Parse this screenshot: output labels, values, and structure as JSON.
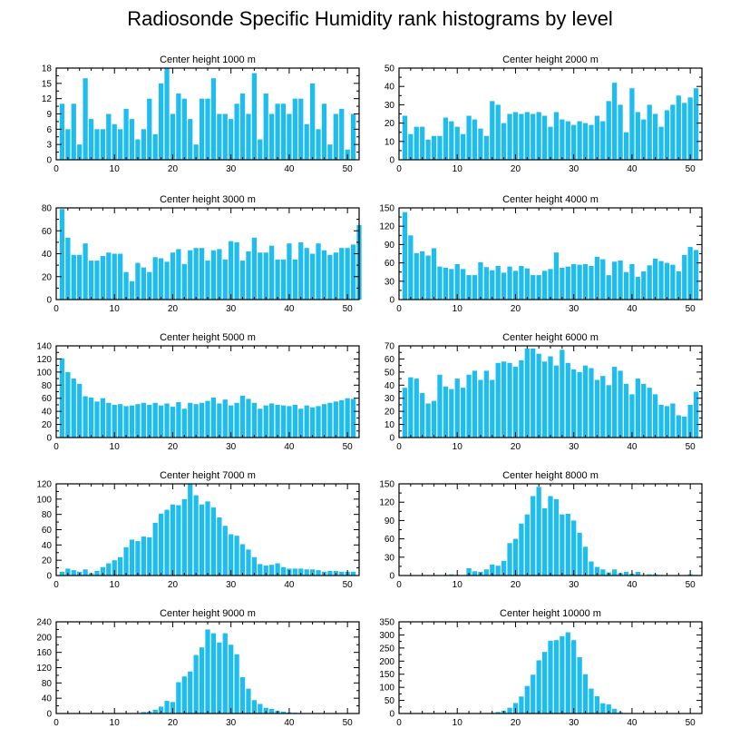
{
  "title": "Radiosonde Specific Humidity rank histograms by level",
  "bar_color": "#1EBDF0",
  "chart_data": [
    {
      "type": "bar",
      "title": "Center height 1000 m",
      "xlim": [
        0,
        52
      ],
      "ylim": [
        0,
        18
      ],
      "xticks": [
        0,
        10,
        20,
        30,
        40,
        50
      ],
      "yticks": [
        0,
        3,
        6,
        9,
        12,
        15,
        18
      ],
      "x": [
        1,
        2,
        3,
        4,
        5,
        6,
        7,
        8,
        9,
        10,
        11,
        12,
        13,
        14,
        15,
        16,
        17,
        18,
        19,
        20,
        21,
        22,
        23,
        24,
        25,
        26,
        27,
        28,
        29,
        30,
        31,
        32,
        33,
        34,
        35,
        36,
        37,
        38,
        39,
        40,
        41,
        42,
        43,
        44,
        45,
        46,
        47,
        48,
        49,
        50,
        51
      ],
      "values": [
        11,
        6,
        11,
        3,
        16,
        8,
        6,
        6,
        9,
        7,
        6,
        10,
        8,
        4,
        6,
        12,
        5,
        15,
        18,
        9,
        13,
        12,
        8,
        3,
        12,
        12,
        16,
        9,
        9,
        8,
        11,
        13,
        9,
        17,
        4,
        13,
        9,
        11,
        11,
        9,
        12,
        12,
        7,
        15,
        6,
        11,
        3,
        9,
        10,
        2,
        9
      ]
    },
    {
      "type": "bar",
      "title": "Center height 2000 m",
      "xlim": [
        0,
        52
      ],
      "ylim": [
        0,
        50
      ],
      "xticks": [
        0,
        10,
        20,
        30,
        40,
        50
      ],
      "yticks": [
        0,
        10,
        20,
        30,
        40,
        50
      ],
      "x": [
        1,
        2,
        3,
        4,
        5,
        6,
        7,
        8,
        9,
        10,
        11,
        12,
        13,
        14,
        15,
        16,
        17,
        18,
        19,
        20,
        21,
        22,
        23,
        24,
        25,
        26,
        27,
        28,
        29,
        30,
        31,
        32,
        33,
        34,
        35,
        36,
        37,
        38,
        39,
        40,
        41,
        42,
        43,
        44,
        45,
        46,
        47,
        48,
        49,
        50,
        51
      ],
      "values": [
        24,
        14,
        18,
        18,
        11,
        13,
        13,
        23,
        21,
        18,
        14,
        24,
        22,
        17,
        13,
        32,
        30,
        20,
        25,
        26,
        25,
        26,
        25,
        26,
        24,
        18,
        26,
        22,
        21,
        19,
        21,
        20,
        19,
        24,
        21,
        32,
        42,
        30,
        15,
        39,
        26,
        22,
        30,
        25,
        18,
        27,
        30,
        35,
        31,
        34,
        39
      ]
    },
    {
      "type": "bar",
      "title": "Center height 3000 m",
      "xlim": [
        0,
        52
      ],
      "ylim": [
        0,
        80
      ],
      "xticks": [
        0,
        10,
        20,
        30,
        40,
        50
      ],
      "yticks": [
        0,
        20,
        40,
        60,
        80
      ],
      "x": [
        1,
        2,
        3,
        4,
        5,
        6,
        7,
        8,
        9,
        10,
        11,
        12,
        13,
        14,
        15,
        16,
        17,
        18,
        19,
        20,
        21,
        22,
        23,
        24,
        25,
        26,
        27,
        28,
        29,
        30,
        31,
        32,
        33,
        34,
        35,
        36,
        37,
        38,
        39,
        40,
        41,
        42,
        43,
        44,
        45,
        46,
        47,
        48,
        49,
        50,
        51,
        52
      ],
      "values": [
        79,
        54,
        39,
        39,
        49,
        34,
        34,
        38,
        41,
        40,
        40,
        24,
        16,
        32,
        28,
        24,
        37,
        36,
        33,
        41,
        44,
        31,
        43,
        45,
        45,
        34,
        43,
        44,
        35,
        51,
        50,
        34,
        42,
        54,
        41,
        41,
        47,
        35,
        35,
        49,
        35,
        50,
        45,
        40,
        49,
        43,
        39,
        41,
        45,
        45,
        48,
        65
      ]
    },
    {
      "type": "bar",
      "title": "Center height 4000 m",
      "xlim": [
        0,
        52
      ],
      "ylim": [
        0,
        150
      ],
      "xticks": [
        0,
        10,
        20,
        30,
        40,
        50
      ],
      "yticks": [
        0,
        30,
        60,
        90,
        120,
        150
      ],
      "x": [
        1,
        2,
        3,
        4,
        5,
        6,
        7,
        8,
        9,
        10,
        11,
        12,
        13,
        14,
        15,
        16,
        17,
        18,
        19,
        20,
        21,
        22,
        23,
        24,
        25,
        26,
        27,
        28,
        29,
        30,
        31,
        32,
        33,
        34,
        35,
        36,
        37,
        38,
        39,
        40,
        41,
        42,
        43,
        44,
        45,
        46,
        47,
        48,
        49,
        50,
        51
      ],
      "values": [
        143,
        105,
        76,
        79,
        72,
        84,
        54,
        52,
        50,
        58,
        50,
        40,
        40,
        61,
        53,
        48,
        55,
        44,
        54,
        47,
        55,
        51,
        40,
        40,
        47,
        50,
        77,
        52,
        54,
        58,
        57,
        58,
        55,
        70,
        66,
        40,
        62,
        64,
        45,
        58,
        37,
        46,
        56,
        67,
        63,
        60,
        57,
        46,
        73,
        86,
        81
      ]
    },
    {
      "type": "bar",
      "title": "Center height 5000 m",
      "xlim": [
        0,
        52
      ],
      "ylim": [
        0,
        140
      ],
      "xticks": [
        0,
        10,
        20,
        30,
        40,
        50
      ],
      "yticks": [
        0,
        20,
        40,
        60,
        80,
        100,
        120,
        140
      ],
      "x": [
        1,
        2,
        3,
        4,
        5,
        6,
        7,
        8,
        9,
        10,
        11,
        12,
        13,
        14,
        15,
        16,
        17,
        18,
        19,
        20,
        21,
        22,
        23,
        24,
        25,
        26,
        27,
        28,
        29,
        30,
        31,
        32,
        33,
        34,
        35,
        36,
        37,
        38,
        39,
        40,
        41,
        42,
        43,
        44,
        45,
        46,
        47,
        48,
        49,
        50,
        51
      ],
      "values": [
        121,
        100,
        90,
        82,
        63,
        61,
        55,
        60,
        53,
        50,
        51,
        48,
        49,
        51,
        53,
        50,
        53,
        49,
        52,
        47,
        54,
        44,
        53,
        51,
        53,
        56,
        61,
        52,
        58,
        49,
        53,
        64,
        59,
        53,
        44,
        49,
        52,
        50,
        49,
        48,
        50,
        44,
        49,
        46,
        48,
        51,
        53,
        55,
        57,
        60,
        59
      ]
    },
    {
      "type": "bar",
      "title": "Center height 6000 m",
      "xlim": [
        0,
        52
      ],
      "ylim": [
        0,
        70
      ],
      "xticks": [
        0,
        10,
        20,
        30,
        40,
        50
      ],
      "yticks": [
        0,
        10,
        20,
        30,
        40,
        50,
        60,
        70
      ],
      "x": [
        1,
        2,
        3,
        4,
        5,
        6,
        7,
        8,
        9,
        10,
        11,
        12,
        13,
        14,
        15,
        16,
        17,
        18,
        19,
        20,
        21,
        22,
        23,
        24,
        25,
        26,
        27,
        28,
        29,
        30,
        31,
        32,
        33,
        34,
        35,
        36,
        37,
        38,
        39,
        40,
        41,
        42,
        43,
        44,
        45,
        46,
        47,
        48,
        49,
        50,
        51
      ],
      "values": [
        38,
        46,
        45,
        34,
        26,
        28,
        48,
        39,
        37,
        45,
        38,
        48,
        51,
        44,
        51,
        44,
        57,
        58,
        57,
        54,
        59,
        68,
        68,
        64,
        58,
        62,
        55,
        67,
        57,
        52,
        50,
        55,
        53,
        44,
        47,
        40,
        54,
        51,
        41,
        33,
        45,
        41,
        38,
        33,
        25,
        24,
        26,
        17,
        16,
        25,
        35
      ]
    },
    {
      "type": "bar",
      "title": "Center height 7000 m",
      "xlim": [
        0,
        52
      ],
      "ylim": [
        0,
        120
      ],
      "xticks": [
        0,
        10,
        20,
        30,
        40,
        50
      ],
      "yticks": [
        0,
        20,
        40,
        60,
        80,
        100,
        120
      ],
      "x": [
        1,
        2,
        3,
        4,
        5,
        6,
        7,
        8,
        9,
        10,
        11,
        12,
        13,
        14,
        15,
        16,
        17,
        18,
        19,
        20,
        21,
        22,
        23,
        24,
        25,
        26,
        27,
        28,
        29,
        30,
        31,
        32,
        33,
        34,
        35,
        36,
        37,
        38,
        39,
        40,
        41,
        42,
        43,
        44,
        45,
        46,
        47,
        48,
        49,
        50,
        51
      ],
      "values": [
        5,
        9,
        7,
        5,
        8,
        3,
        6,
        11,
        16,
        20,
        24,
        37,
        47,
        45,
        51,
        50,
        69,
        81,
        86,
        93,
        92,
        100,
        120,
        105,
        93,
        97,
        89,
        76,
        65,
        54,
        52,
        41,
        34,
        24,
        15,
        13,
        14,
        16,
        11,
        9,
        9,
        9,
        8,
        8,
        7,
        5,
        6,
        6,
        5,
        5,
        5
      ]
    },
    {
      "type": "bar",
      "title": "Center height 8000 m",
      "xlim": [
        0,
        52
      ],
      "ylim": [
        0,
        150
      ],
      "xticks": [
        0,
        10,
        20,
        30,
        40,
        50
      ],
      "yticks": [
        0,
        30,
        60,
        90,
        120,
        150
      ],
      "x": [
        1,
        2,
        3,
        4,
        5,
        6,
        7,
        8,
        9,
        10,
        11,
        12,
        13,
        14,
        15,
        16,
        17,
        18,
        19,
        20,
        21,
        22,
        23,
        24,
        25,
        26,
        27,
        28,
        29,
        30,
        31,
        32,
        33,
        34,
        35,
        36,
        37,
        38,
        39,
        40,
        41,
        42,
        43,
        44,
        45,
        46,
        47,
        48,
        49,
        50,
        51
      ],
      "values": [
        0,
        0,
        0,
        0,
        0,
        0,
        0,
        1,
        2,
        1,
        0,
        12,
        7,
        6,
        10,
        18,
        16,
        24,
        53,
        60,
        85,
        100,
        130,
        145,
        110,
        130,
        125,
        100,
        101,
        90,
        70,
        47,
        23,
        14,
        10,
        5,
        10,
        4,
        6,
        3,
        6,
        0,
        2,
        2,
        1,
        0,
        0,
        0,
        0,
        2,
        1
      ]
    },
    {
      "type": "bar",
      "title": "Center height 9000 m",
      "xlim": [
        0,
        52
      ],
      "ylim": [
        0,
        240
      ],
      "xticks": [
        0,
        10,
        20,
        30,
        40,
        50
      ],
      "yticks": [
        0,
        40,
        80,
        120,
        160,
        200,
        240
      ],
      "x": [
        1,
        2,
        3,
        4,
        5,
        6,
        7,
        8,
        9,
        10,
        11,
        12,
        13,
        14,
        15,
        16,
        17,
        18,
        19,
        20,
        21,
        22,
        23,
        24,
        25,
        26,
        27,
        28,
        29,
        30,
        31,
        32,
        33,
        34,
        35,
        36,
        37,
        38,
        39,
        40,
        41,
        42,
        43,
        44,
        45,
        46,
        47,
        48,
        49,
        50,
        51
      ],
      "values": [
        0,
        0,
        0,
        0,
        0,
        0,
        0,
        0,
        0,
        0,
        0,
        0,
        0,
        0,
        4,
        5,
        10,
        18,
        33,
        30,
        82,
        97,
        110,
        153,
        173,
        220,
        210,
        186,
        210,
        180,
        155,
        95,
        65,
        35,
        25,
        15,
        12,
        7,
        5,
        3,
        2,
        0,
        0,
        0,
        0,
        0,
        0,
        0,
        0,
        0,
        0
      ]
    },
    {
      "type": "bar",
      "title": "Center height 10000 m",
      "xlim": [
        0,
        52
      ],
      "ylim": [
        0,
        350
      ],
      "xticks": [
        0,
        10,
        20,
        30,
        40,
        50
      ],
      "yticks": [
        0,
        50,
        100,
        150,
        200,
        250,
        300,
        350
      ],
      "x": [
        1,
        2,
        3,
        4,
        5,
        6,
        7,
        8,
        9,
        10,
        11,
        12,
        13,
        14,
        15,
        16,
        17,
        18,
        19,
        20,
        21,
        22,
        23,
        24,
        25,
        26,
        27,
        28,
        29,
        30,
        31,
        32,
        33,
        34,
        35,
        36,
        37,
        38,
        39,
        40,
        41,
        42,
        43,
        44,
        45,
        46,
        47,
        48,
        49,
        50,
        51
      ],
      "values": [
        0,
        0,
        0,
        0,
        0,
        0,
        0,
        0,
        0,
        0,
        0,
        0,
        0,
        0,
        0,
        3,
        6,
        11,
        22,
        40,
        65,
        105,
        148,
        203,
        235,
        278,
        280,
        295,
        310,
        280,
        215,
        150,
        95,
        66,
        39,
        35,
        18,
        5,
        2,
        0,
        0,
        0,
        0,
        0,
        0,
        0,
        0,
        0,
        0,
        0,
        0
      ]
    }
  ]
}
